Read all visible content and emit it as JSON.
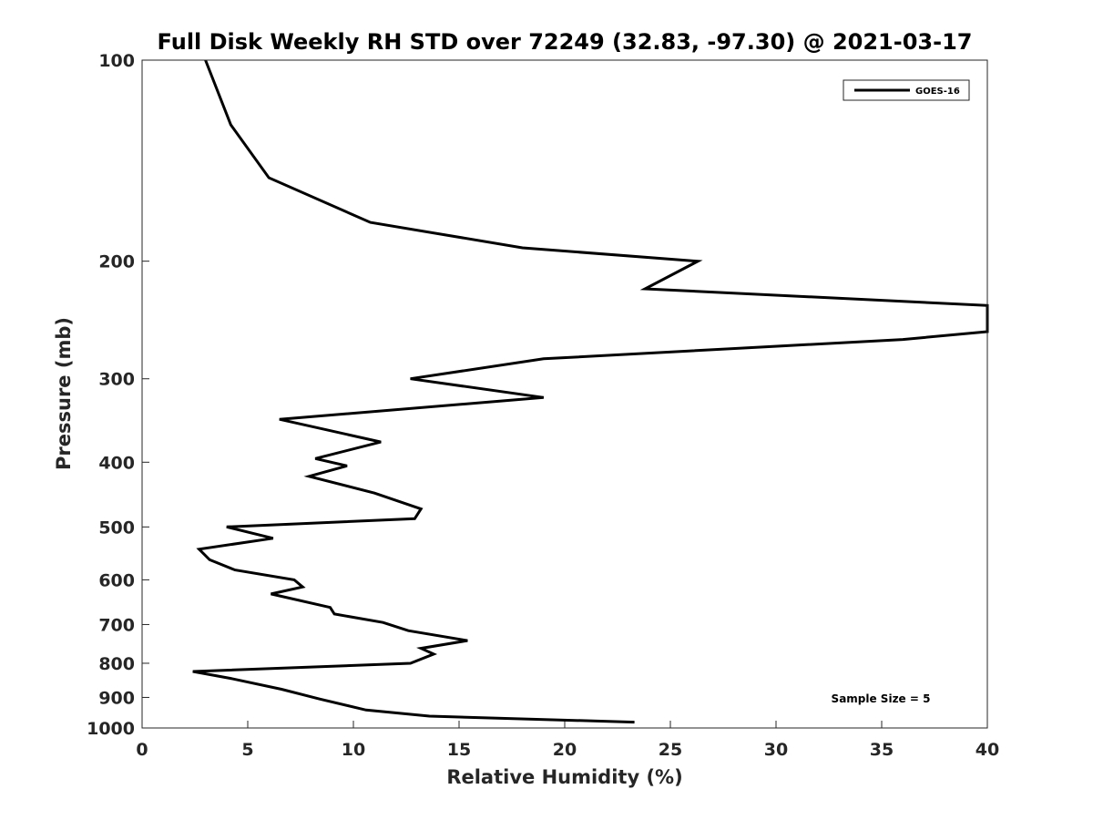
{
  "chart_data": {
    "type": "line",
    "title": "Full Disk Weekly RH STD over 72249 (32.83, -97.30) @ 2021-03-17",
    "xlabel": "Relative Humidity (%)",
    "ylabel": "Pressure (mb)",
    "xlim": [
      0,
      40
    ],
    "ylim": [
      100,
      1000
    ],
    "y_scale": "log",
    "y_reversed": true,
    "x_ticks": [
      "0",
      "5",
      "10",
      "15",
      "20",
      "25",
      "30",
      "35",
      "40"
    ],
    "y_ticks": [
      "100",
      "200",
      "300",
      "400",
      "500",
      "600",
      "700",
      "800",
      "900",
      "1000"
    ],
    "grid": false,
    "legend_position": "top-right",
    "annotation": "Sample Size = 5",
    "series": [
      {
        "name": "GOES-16",
        "color": "#000000",
        "points": [
          [
            3.0,
            100
          ],
          [
            4.2,
            125
          ],
          [
            6.0,
            150
          ],
          [
            10.8,
            175
          ],
          [
            18.0,
            191
          ],
          [
            26.3,
            200
          ],
          [
            23.8,
            220
          ],
          [
            40.0,
            233
          ],
          [
            40.0,
            255
          ],
          [
            36.0,
            262
          ],
          [
            19.0,
            280
          ],
          [
            12.7,
            300
          ],
          [
            19.0,
            320
          ],
          [
            6.5,
            345
          ],
          [
            11.3,
            373
          ],
          [
            8.2,
            395
          ],
          [
            9.7,
            405
          ],
          [
            7.9,
            420
          ],
          [
            11.0,
            445
          ],
          [
            13.2,
            470
          ],
          [
            12.9,
            486
          ],
          [
            4.0,
            500
          ],
          [
            6.2,
            520
          ],
          [
            2.7,
            540
          ],
          [
            3.2,
            560
          ],
          [
            4.4,
            580
          ],
          [
            7.2,
            600
          ],
          [
            7.6,
            615
          ],
          [
            6.1,
            630
          ],
          [
            8.9,
            660
          ],
          [
            9.1,
            675
          ],
          [
            11.4,
            695
          ],
          [
            12.6,
            715
          ],
          [
            15.4,
            740
          ],
          [
            13.2,
            760
          ],
          [
            13.8,
            775
          ],
          [
            12.7,
            800
          ],
          [
            2.4,
            823
          ],
          [
            4.2,
            843
          ],
          [
            6.6,
            875
          ],
          [
            8.4,
            905
          ],
          [
            10.6,
            940
          ],
          [
            13.6,
            960
          ],
          [
            23.3,
            980
          ]
        ]
      }
    ]
  }
}
